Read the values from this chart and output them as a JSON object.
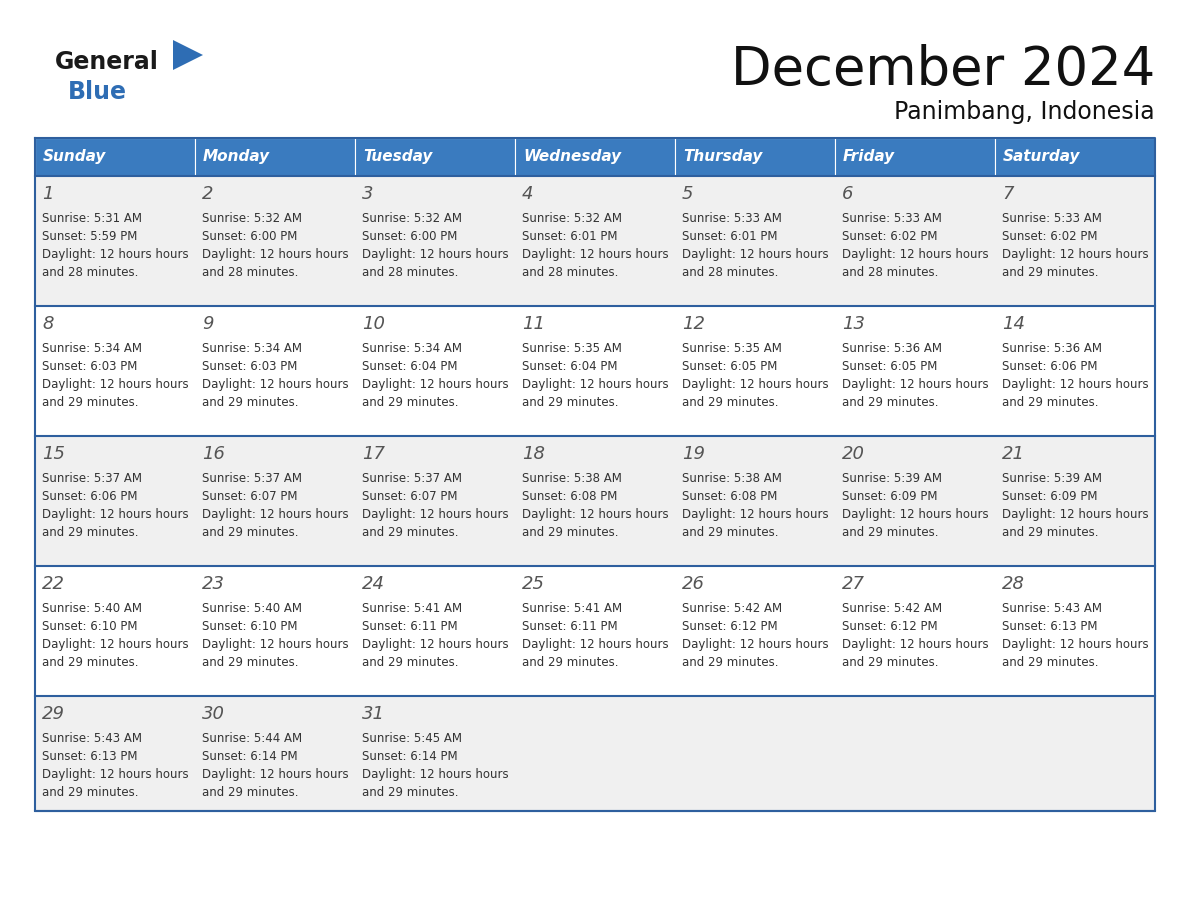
{
  "title": "December 2024",
  "subtitle": "Panimbang, Indonesia",
  "days_of_week": [
    "Sunday",
    "Monday",
    "Tuesday",
    "Wednesday",
    "Thursday",
    "Friday",
    "Saturday"
  ],
  "header_bg": "#3a7bbf",
  "header_text_color": "#ffffff",
  "row_bg_odd": "#f0f0f0",
  "row_bg_even": "#ffffff",
  "cell_border_color": "#2e5f9e",
  "day_number_color": "#555555",
  "text_color": "#333333",
  "logo_general_color": "#1a1a1a",
  "logo_blue_color": "#2e6db4",
  "triangle_color": "#2e6db4",
  "calendar_data": [
    [
      {
        "day": 1,
        "sunrise": "5:31 AM",
        "sunset": "5:59 PM",
        "daylight": "12 hours and 28 minutes"
      },
      {
        "day": 2,
        "sunrise": "5:32 AM",
        "sunset": "6:00 PM",
        "daylight": "12 hours and 28 minutes"
      },
      {
        "day": 3,
        "sunrise": "5:32 AM",
        "sunset": "6:00 PM",
        "daylight": "12 hours and 28 minutes"
      },
      {
        "day": 4,
        "sunrise": "5:32 AM",
        "sunset": "6:01 PM",
        "daylight": "12 hours and 28 minutes"
      },
      {
        "day": 5,
        "sunrise": "5:33 AM",
        "sunset": "6:01 PM",
        "daylight": "12 hours and 28 minutes"
      },
      {
        "day": 6,
        "sunrise": "5:33 AM",
        "sunset": "6:02 PM",
        "daylight": "12 hours and 28 minutes"
      },
      {
        "day": 7,
        "sunrise": "5:33 AM",
        "sunset": "6:02 PM",
        "daylight": "12 hours and 29 minutes"
      }
    ],
    [
      {
        "day": 8,
        "sunrise": "5:34 AM",
        "sunset": "6:03 PM",
        "daylight": "12 hours and 29 minutes"
      },
      {
        "day": 9,
        "sunrise": "5:34 AM",
        "sunset": "6:03 PM",
        "daylight": "12 hours and 29 minutes"
      },
      {
        "day": 10,
        "sunrise": "5:34 AM",
        "sunset": "6:04 PM",
        "daylight": "12 hours and 29 minutes"
      },
      {
        "day": 11,
        "sunrise": "5:35 AM",
        "sunset": "6:04 PM",
        "daylight": "12 hours and 29 minutes"
      },
      {
        "day": 12,
        "sunrise": "5:35 AM",
        "sunset": "6:05 PM",
        "daylight": "12 hours and 29 minutes"
      },
      {
        "day": 13,
        "sunrise": "5:36 AM",
        "sunset": "6:05 PM",
        "daylight": "12 hours and 29 minutes"
      },
      {
        "day": 14,
        "sunrise": "5:36 AM",
        "sunset": "6:06 PM",
        "daylight": "12 hours and 29 minutes"
      }
    ],
    [
      {
        "day": 15,
        "sunrise": "5:37 AM",
        "sunset": "6:06 PM",
        "daylight": "12 hours and 29 minutes"
      },
      {
        "day": 16,
        "sunrise": "5:37 AM",
        "sunset": "6:07 PM",
        "daylight": "12 hours and 29 minutes"
      },
      {
        "day": 17,
        "sunrise": "5:37 AM",
        "sunset": "6:07 PM",
        "daylight": "12 hours and 29 minutes"
      },
      {
        "day": 18,
        "sunrise": "5:38 AM",
        "sunset": "6:08 PM",
        "daylight": "12 hours and 29 minutes"
      },
      {
        "day": 19,
        "sunrise": "5:38 AM",
        "sunset": "6:08 PM",
        "daylight": "12 hours and 29 minutes"
      },
      {
        "day": 20,
        "sunrise": "5:39 AM",
        "sunset": "6:09 PM",
        "daylight": "12 hours and 29 minutes"
      },
      {
        "day": 21,
        "sunrise": "5:39 AM",
        "sunset": "6:09 PM",
        "daylight": "12 hours and 29 minutes"
      }
    ],
    [
      {
        "day": 22,
        "sunrise": "5:40 AM",
        "sunset": "6:10 PM",
        "daylight": "12 hours and 29 minutes"
      },
      {
        "day": 23,
        "sunrise": "5:40 AM",
        "sunset": "6:10 PM",
        "daylight": "12 hours and 29 minutes"
      },
      {
        "day": 24,
        "sunrise": "5:41 AM",
        "sunset": "6:11 PM",
        "daylight": "12 hours and 29 minutes"
      },
      {
        "day": 25,
        "sunrise": "5:41 AM",
        "sunset": "6:11 PM",
        "daylight": "12 hours and 29 minutes"
      },
      {
        "day": 26,
        "sunrise": "5:42 AM",
        "sunset": "6:12 PM",
        "daylight": "12 hours and 29 minutes"
      },
      {
        "day": 27,
        "sunrise": "5:42 AM",
        "sunset": "6:12 PM",
        "daylight": "12 hours and 29 minutes"
      },
      {
        "day": 28,
        "sunrise": "5:43 AM",
        "sunset": "6:13 PM",
        "daylight": "12 hours and 29 minutes"
      }
    ],
    [
      {
        "day": 29,
        "sunrise": "5:43 AM",
        "sunset": "6:13 PM",
        "daylight": "12 hours and 29 minutes"
      },
      {
        "day": 30,
        "sunrise": "5:44 AM",
        "sunset": "6:14 PM",
        "daylight": "12 hours and 29 minutes"
      },
      {
        "day": 31,
        "sunrise": "5:45 AM",
        "sunset": "6:14 PM",
        "daylight": "12 hours and 29 minutes"
      },
      null,
      null,
      null,
      null
    ]
  ]
}
